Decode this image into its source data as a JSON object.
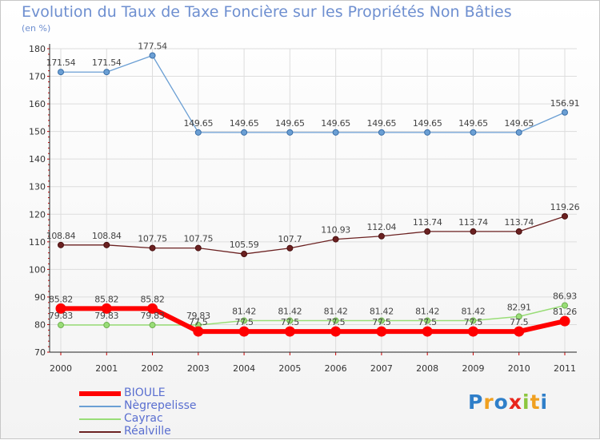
{
  "header": {
    "title": "Evolution du Taux de Taxe Foncière sur les Propriétés Non Bâties",
    "unit": "(en %)"
  },
  "colors": {
    "bjoule": "#ff0000",
    "negrepelisse": "#6b9fd4",
    "cayrac": "#99dd77",
    "realville": "#6b2121",
    "title": "#6e8fd0",
    "grid": "#dddddd",
    "axis": "#222222"
  },
  "chart_data": {
    "type": "line",
    "title": "Evolution du Taux de Taxe Foncière sur les Propriétés Non Bâties",
    "ylabel": "(en %)",
    "xlabel": "",
    "ylim": [
      70,
      180
    ],
    "yticks": [
      70,
      80,
      90,
      100,
      110,
      120,
      130,
      140,
      150,
      160,
      170,
      180
    ],
    "x": [
      "2000",
      "2001",
      "2002",
      "2003",
      "2004",
      "2005",
      "2006",
      "2007",
      "2008",
      "2009",
      "2010",
      "2011"
    ],
    "grid": true,
    "series": [
      {
        "key": "negrepelisse",
        "name": "Nègrepelisse",
        "values": [
          171.54,
          171.54,
          177.54,
          149.65,
          149.65,
          149.65,
          149.65,
          149.65,
          149.65,
          149.65,
          149.65,
          156.91
        ],
        "labels": [
          "171.54",
          "171.54",
          "177.54",
          "149.65",
          "149.65",
          "149.65",
          "149.65",
          "149.65",
          "149.65",
          "149.65",
          "149.65",
          "156.91"
        ]
      },
      {
        "key": "realville",
        "name": "Réalville",
        "values": [
          108.84,
          108.84,
          107.75,
          107.75,
          105.59,
          107.7,
          110.93,
          112.04,
          113.74,
          113.74,
          113.74,
          119.26
        ],
        "labels": [
          "108.84",
          "108.84",
          "107.75",
          "107.75",
          "105.59",
          "107.7",
          "110.93",
          "112.04",
          "113.74",
          "113.74",
          "113.74",
          "119.26"
        ]
      },
      {
        "key": "cayrac",
        "name": "Cayrac",
        "values": [
          79.83,
          79.83,
          79.83,
          79.83,
          81.42,
          81.42,
          81.42,
          81.42,
          81.42,
          81.42,
          82.91,
          86.93
        ],
        "labels": [
          "79.83",
          "79.83",
          "79.83",
          "79.83",
          "81.42",
          "81.42",
          "81.42",
          "81.42",
          "81.42",
          "81.42",
          "82.91",
          "86.93"
        ]
      },
      {
        "key": "bjoule",
        "name": "BIOULE",
        "values": [
          85.82,
          85.82,
          85.82,
          77.5,
          77.5,
          77.5,
          77.5,
          77.5,
          77.5,
          77.5,
          77.5,
          81.26
        ],
        "labels": [
          "85.82",
          "85.82",
          "85.82",
          "77.5",
          "77.5",
          "77.5",
          "77.5",
          "77.5",
          "77.5",
          "77.5",
          "77.5",
          "81.26"
        ]
      }
    ]
  },
  "legend": {
    "items": [
      {
        "label": "BIOULE",
        "key": "bjoule"
      },
      {
        "label": "Nègrepelisse",
        "key": "negrepelisse"
      },
      {
        "label": "Cayrac",
        "key": "cayrac"
      },
      {
        "label": "Réalville",
        "key": "realville"
      }
    ]
  },
  "logo": {
    "letters": [
      "P",
      "r",
      "o",
      "x",
      "i",
      "t",
      "i"
    ],
    "colors": [
      "#2f7fc9",
      "#f0a020",
      "#2f7fc9",
      "#e8261c",
      "#8cc63e",
      "#f0a020",
      "#2f7fc9"
    ]
  }
}
